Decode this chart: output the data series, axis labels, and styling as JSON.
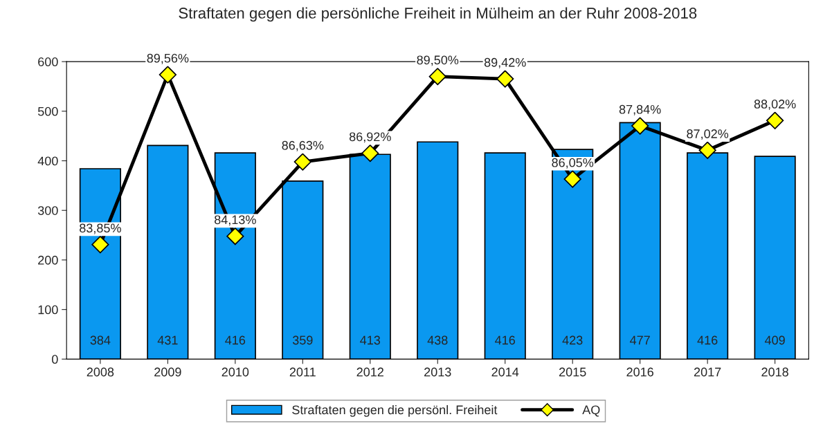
{
  "chart_data": {
    "type": "bar",
    "title": "Straftaten gegen die persönliche Freiheit in Mülheim an der Ruhr 2008-2018",
    "categories": [
      "2008",
      "2009",
      "2010",
      "2011",
      "2012",
      "2013",
      "2014",
      "2015",
      "2016",
      "2017",
      "2018"
    ],
    "series": [
      {
        "name": "Straftaten gegen die persönl. Freiheit",
        "color": "#0a98f0",
        "values": [
          384,
          431,
          416,
          359,
          413,
          438,
          416,
          423,
          477,
          416,
          409
        ],
        "value_labels": [
          "384",
          "431",
          "416",
          "359",
          "413",
          "438",
          "416",
          "423",
          "477",
          "416",
          "409"
        ]
      },
      {
        "name": "AQ",
        "type": "line",
        "axis": "y2",
        "color": "#000000",
        "marker": "diamond",
        "values": [
          83.85,
          89.56,
          84.13,
          86.63,
          86.92,
          89.5,
          89.42,
          86.05,
          87.84,
          87.02,
          88.02
        ],
        "value_labels": [
          "83,85%",
          "89,56%",
          "84,13%",
          "86,63%",
          "86,92%",
          "89,50%",
          "89,42%",
          "86,05%",
          "87,84%",
          "87,02%",
          "88,02%"
        ]
      }
    ],
    "ylim": [
      0,
      600
    ],
    "yticks": [
      0,
      100,
      200,
      300,
      400,
      500,
      600
    ],
    "y2lim": [
      80,
      90
    ],
    "grid": false,
    "legend": "bottom"
  }
}
